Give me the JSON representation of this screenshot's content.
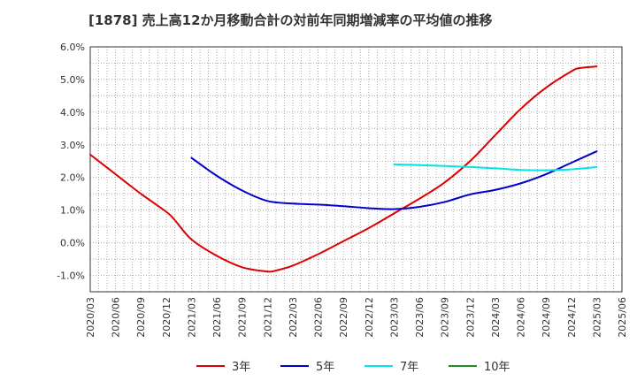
{
  "chart_data": {
    "type": "line",
    "title": "[1878]  売上高12か月移動合計の対前年同期増減率の平均値の推移",
    "xlabel": "",
    "ylabel": "",
    "ylim": [
      -1.5,
      6.0
    ],
    "y_ticks": [
      "6.0%",
      "5.0%",
      "4.0%",
      "3.0%",
      "2.0%",
      "1.0%",
      "0.0%",
      "-1.0%"
    ],
    "x_ticks": [
      "2020/03",
      "2020/06",
      "2020/09",
      "2020/12",
      "2021/03",
      "2021/06",
      "2021/09",
      "2021/12",
      "2022/03",
      "2022/06",
      "2022/09",
      "2022/12",
      "2023/03",
      "2023/06",
      "2023/09",
      "2023/12",
      "2024/03",
      "2024/06",
      "2024/09",
      "2024/12",
      "2025/03",
      "2025/06"
    ],
    "grid": true,
    "legend_position": "bottom",
    "series": [
      {
        "name": "3年",
        "color": "#dd0000",
        "x": [
          "2020/03",
          "2020/06",
          "2020/09",
          "2020/12",
          "2021/01",
          "2021/03",
          "2021/06",
          "2021/09",
          "2021/12",
          "2022/01",
          "2022/03",
          "2022/06",
          "2022/09",
          "2022/12",
          "2023/03",
          "2023/06",
          "2023/09",
          "2023/12",
          "2024/03",
          "2024/06",
          "2024/09",
          "2024/12",
          "2025/01",
          "2025/03"
        ],
        "values": [
          2.7,
          2.1,
          1.5,
          0.95,
          0.7,
          0.1,
          -0.4,
          -0.75,
          -0.88,
          -0.85,
          -0.7,
          -0.35,
          0.05,
          0.45,
          0.9,
          1.35,
          1.85,
          2.5,
          3.3,
          4.1,
          4.75,
          5.25,
          5.35,
          5.4
        ]
      },
      {
        "name": "5年",
        "color": "#0000cc",
        "x": [
          "2021/03",
          "2021/06",
          "2021/09",
          "2021/12",
          "2022/03",
          "2022/06",
          "2022/09",
          "2022/12",
          "2023/03",
          "2023/06",
          "2023/09",
          "2023/12",
          "2024/03",
          "2024/06",
          "2024/09",
          "2024/12",
          "2025/03"
        ],
        "values": [
          2.6,
          2.05,
          1.6,
          1.28,
          1.2,
          1.17,
          1.12,
          1.06,
          1.03,
          1.1,
          1.25,
          1.48,
          1.62,
          1.82,
          2.1,
          2.45,
          2.8
        ]
      },
      {
        "name": "7年",
        "color": "#00e5e5",
        "x": [
          "2023/03",
          "2023/06",
          "2023/09",
          "2023/12",
          "2024/03",
          "2024/06",
          "2024/09",
          "2024/12",
          "2025/03"
        ],
        "values": [
          2.4,
          2.38,
          2.35,
          2.32,
          2.28,
          2.23,
          2.22,
          2.25,
          2.32
        ]
      },
      {
        "name": "10年",
        "color": "#228b22",
        "x": [],
        "values": []
      }
    ]
  }
}
